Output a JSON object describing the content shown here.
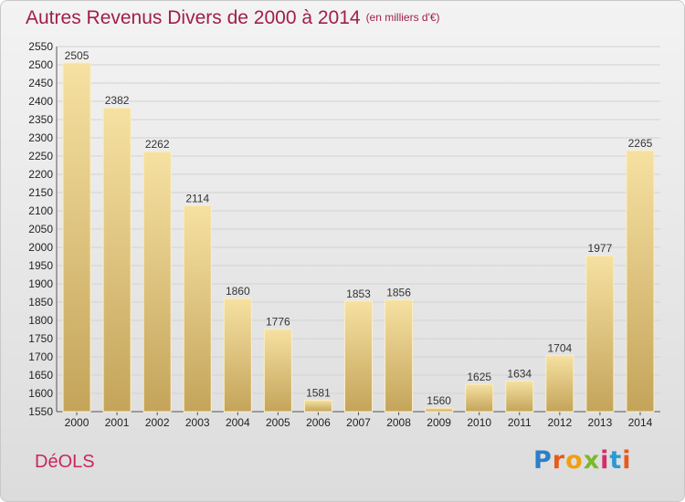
{
  "header": {
    "title": "Autres Revenus Divers de 2000 à 2014",
    "subtitle": "(en milliers d'€)"
  },
  "footer": {
    "commune": "DéOLS",
    "logo": "Proxiti"
  },
  "colors": {
    "title": "#a01e4a",
    "bar_light": "#f6e1a2",
    "bar_dark": "#c8a85c",
    "commune": "#c8285a"
  },
  "chart_data": {
    "type": "bar",
    "title": "Autres Revenus Divers de 2000 à 2014",
    "subtitle": "(en milliers d'€)",
    "xlabel": "",
    "ylabel": "",
    "categories": [
      "2000",
      "2001",
      "2002",
      "2003",
      "2004",
      "2005",
      "2006",
      "2007",
      "2008",
      "2009",
      "2010",
      "2011",
      "2012",
      "2013",
      "2014"
    ],
    "values": [
      2505,
      2382,
      2262,
      2114,
      1860,
      1776,
      1581,
      1853,
      1856,
      1560,
      1625,
      1634,
      1704,
      1977,
      2265
    ],
    "ylim": [
      1550,
      2550
    ],
    "ytick_step": 50,
    "grid": true,
    "legend": "none"
  }
}
